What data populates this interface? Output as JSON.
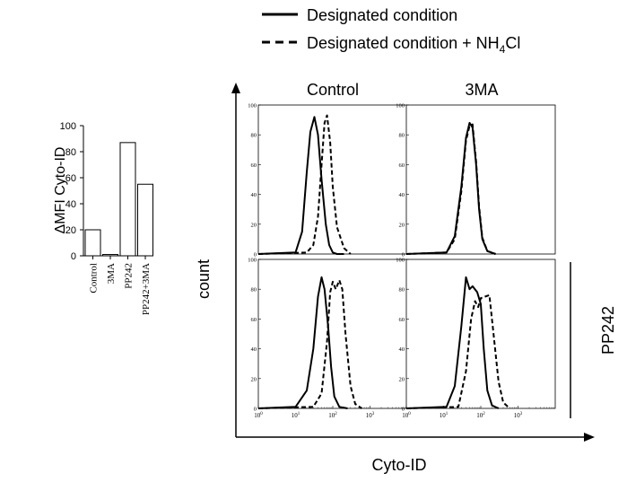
{
  "legend": {
    "solid_label": "Designated condition",
    "dashed_label_prefix": "Designated condition + NH",
    "dashed_label_sub": "4",
    "dashed_label_suffix": "Cl"
  },
  "chart_data": [
    {
      "type": "bar",
      "ylabel": "ΔMFI Cyto-ID",
      "categories": [
        "Control",
        "3MA",
        "PP242",
        "PP242+3MA"
      ],
      "values": [
        20,
        1,
        87,
        55
      ],
      "ylim": [
        0,
        100
      ],
      "yticks": [
        "0",
        "20",
        "40",
        "60",
        "80",
        "100"
      ],
      "bar_fill": "#ffffff",
      "bar_stroke": "#000000"
    },
    {
      "type": "line",
      "xlabel": "Cyto-ID",
      "ylabel": "count",
      "x_scale": "log",
      "xlim": [
        1,
        10000
      ],
      "ylim": [
        0,
        100
      ],
      "xtick_bases": [
        "10",
        "10",
        "10",
        "10"
      ],
      "xtick_exps": [
        "0",
        "1",
        "2",
        "3"
      ],
      "yticks": [
        "0",
        "20",
        "40",
        "60",
        "80",
        "100"
      ],
      "column_labels": [
        "Control",
        "3MA"
      ],
      "row_label": "PP242",
      "panels": [
        {
          "row": 0,
          "col": 0,
          "series": [
            {
              "style": "solid",
              "x": [
                1,
                10,
                15,
                20,
                25,
                32,
                40,
                50,
                65,
                80,
                100,
                130,
                200
              ],
              "y": [
                0,
                1,
                15,
                55,
                82,
                92,
                80,
                50,
                20,
                6,
                1,
                0,
                0
              ]
            },
            {
              "style": "dashed",
              "x": [
                1,
                20,
                30,
                40,
                50,
                60,
                70,
                85,
                100,
                130,
                200,
                300
              ],
              "y": [
                0,
                1,
                6,
                25,
                60,
                88,
                93,
                75,
                45,
                18,
                4,
                0
              ]
            }
          ]
        },
        {
          "row": 0,
          "col": 1,
          "series": [
            {
              "style": "solid",
              "x": [
                1,
                12,
                20,
                30,
                40,
                50,
                60,
                75,
                90,
                110,
                150,
                250
              ],
              "y": [
                0,
                1,
                12,
                45,
                78,
                88,
                85,
                60,
                30,
                10,
                2,
                0
              ]
            },
            {
              "style": "dashed",
              "x": [
                1,
                12,
                20,
                30,
                40,
                50,
                60,
                75,
                90,
                110,
                150,
                250
              ],
              "y": [
                0,
                1,
                10,
                42,
                76,
                86,
                87,
                62,
                32,
                11,
                2,
                0
              ]
            }
          ]
        },
        {
          "row": 1,
          "col": 0,
          "series": [
            {
              "style": "solid",
              "x": [
                1,
                10,
                20,
                30,
                40,
                50,
                60,
                75,
                90,
                110,
                150,
                250
              ],
              "y": [
                0,
                1,
                12,
                40,
                75,
                88,
                80,
                55,
                28,
                8,
                1,
                0
              ]
            },
            {
              "style": "dashed",
              "x": [
                1,
                30,
                50,
                70,
                85,
                100,
                120,
                150,
                180,
                220,
                300,
                400,
                600
              ],
              "y": [
                0,
                1,
                10,
                45,
                78,
                85,
                80,
                86,
                80,
                50,
                15,
                3,
                0
              ]
            }
          ]
        },
        {
          "row": 1,
          "col": 1,
          "series": [
            {
              "style": "solid",
              "x": [
                1,
                12,
                20,
                30,
                40,
                50,
                60,
                80,
                100,
                120,
                150,
                200,
                300
              ],
              "y": [
                0,
                1,
                15,
                55,
                88,
                80,
                82,
                78,
                70,
                40,
                12,
                2,
                0
              ]
            },
            {
              "style": "dashed",
              "x": [
                1,
                25,
                40,
                55,
                70,
                85,
                100,
                130,
                170,
                220,
                300,
                400,
                600
              ],
              "y": [
                0,
                1,
                25,
                60,
                72,
                68,
                74,
                75,
                76,
                50,
                18,
                4,
                0
              ]
            }
          ]
        }
      ]
    }
  ]
}
